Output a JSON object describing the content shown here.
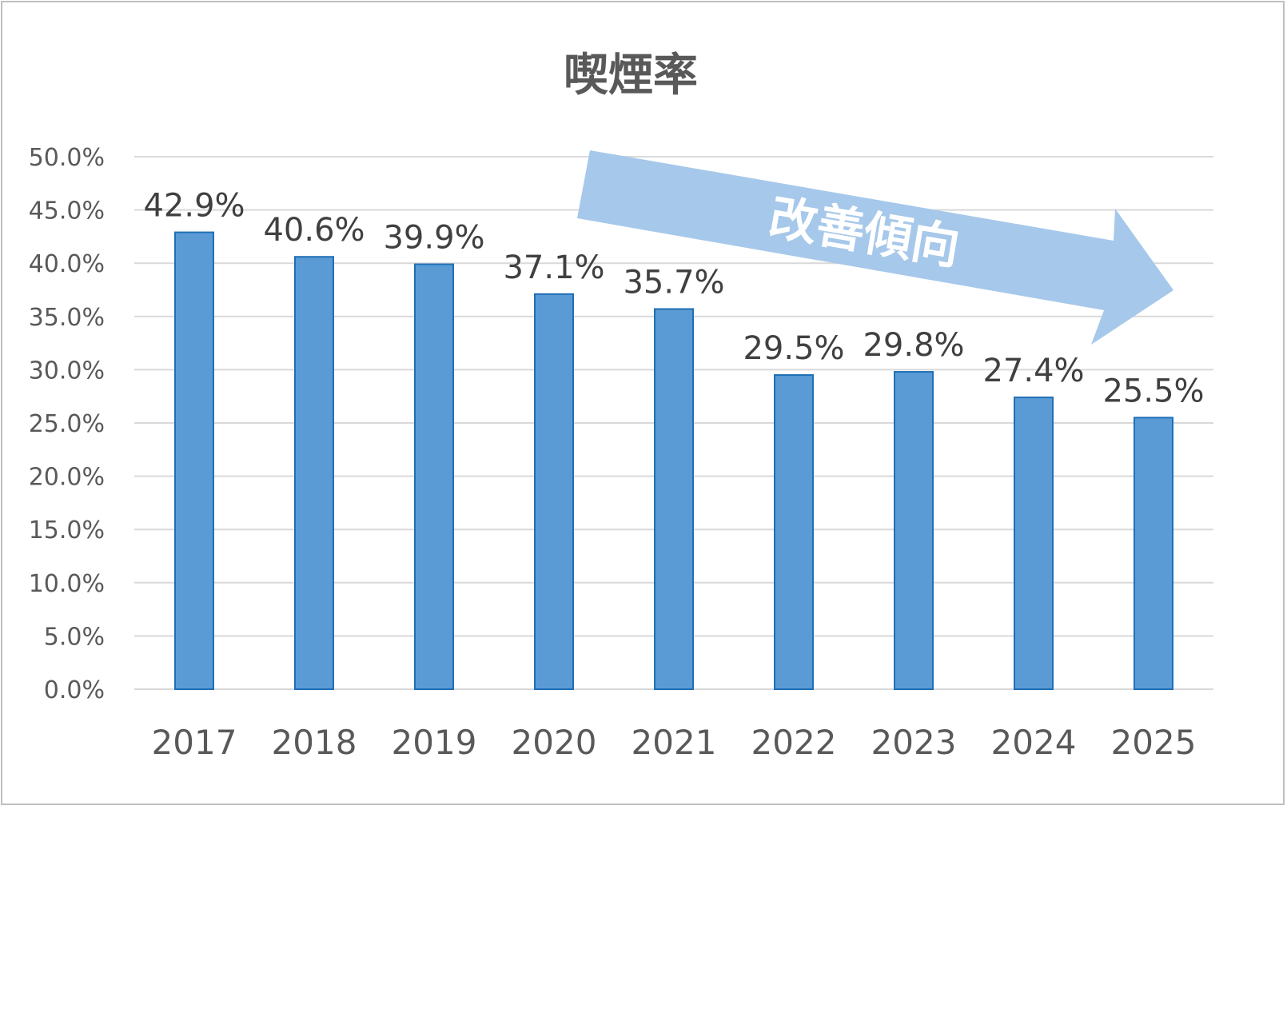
{
  "chart_data": {
    "type": "bar",
    "title": "喫煙率",
    "categories": [
      "2017",
      "2018",
      "2019",
      "2020",
      "2021",
      "2022",
      "2023",
      "2024",
      "2025"
    ],
    "series": [
      {
        "values": [
          42.9,
          40.6,
          39.9,
          37.1,
          35.7,
          29.5,
          29.8,
          27.4,
          25.5
        ],
        "data_labels": [
          "42.9%",
          "40.6%",
          "39.9%",
          "37.1%",
          "35.7%",
          "29.5%",
          "29.8%",
          "27.4%",
          "25.5%"
        ]
      }
    ],
    "ylim": [
      0,
      50
    ],
    "y_ticks": [
      "0.0%",
      "5.0%",
      "10.0%",
      "15.0%",
      "20.0%",
      "25.0%",
      "30.0%",
      "35.0%",
      "40.0%",
      "45.0%",
      "50.0%"
    ],
    "y_tick_values": [
      0,
      5,
      10,
      15,
      20,
      25,
      30,
      35,
      40,
      45,
      50
    ],
    "xlabel": "",
    "ylabel": "",
    "grid": true,
    "legend": "none",
    "annotation": {
      "text": "改善傾向",
      "shape": "arrow-down-right"
    },
    "colors": {
      "bar_fill": "#5b9bd5",
      "bar_stroke": "#1f6fb5",
      "grid": "#d9d9d9",
      "arrow": "#a6c8ea",
      "frame": "#bfbfbf"
    }
  }
}
